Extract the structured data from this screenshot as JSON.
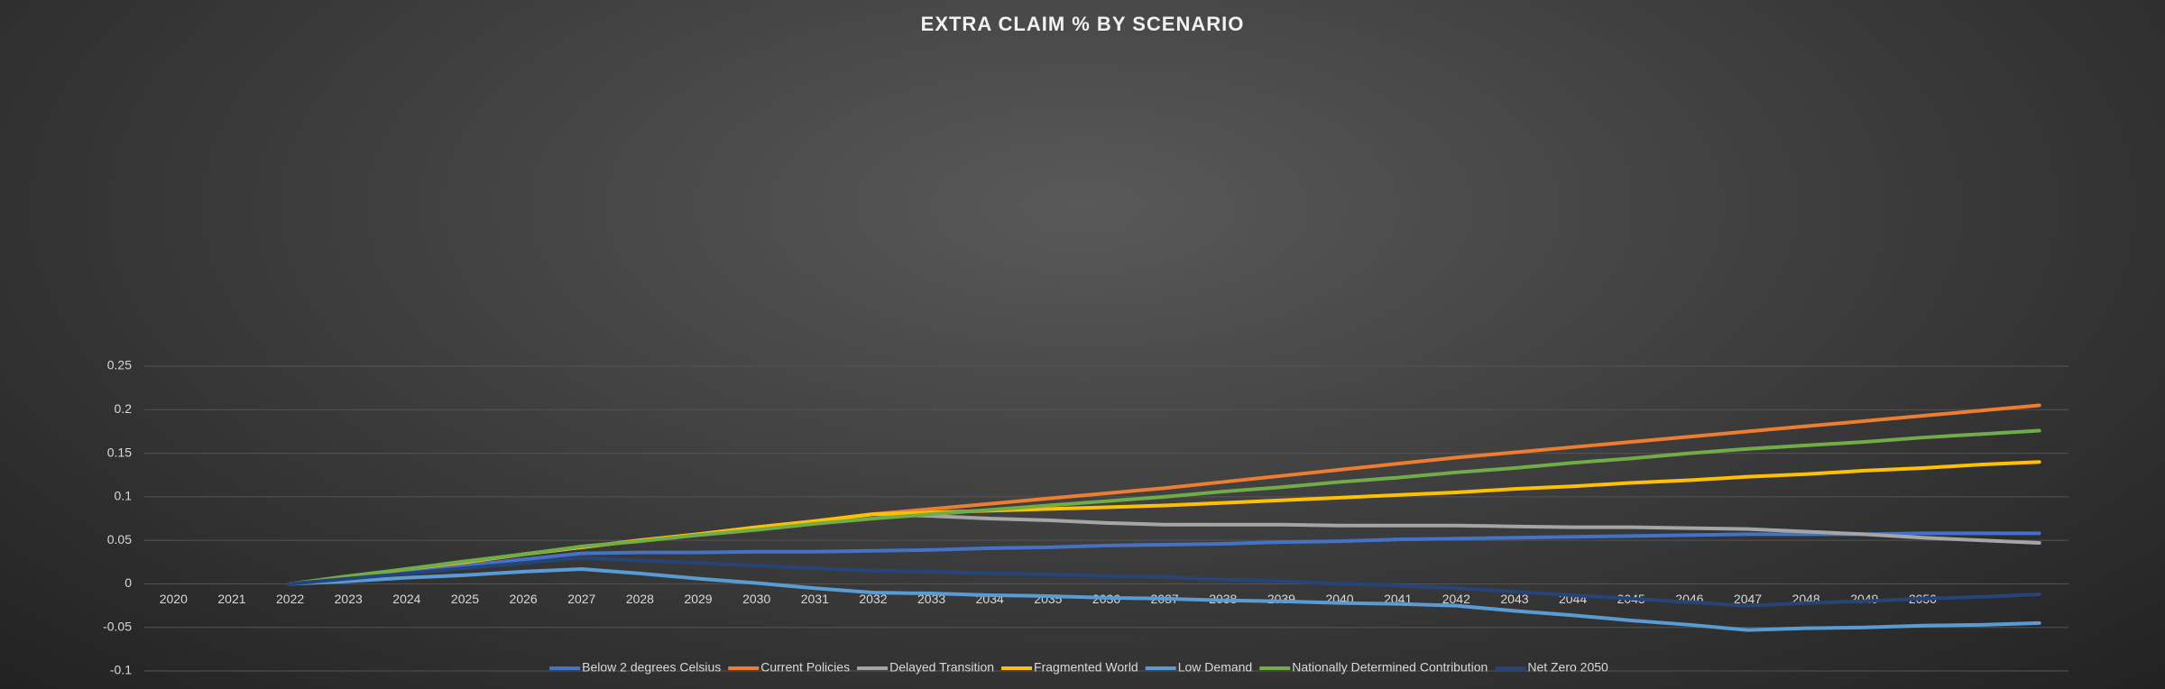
{
  "chart_data": {
    "type": "line",
    "title": "EXTRA CLAIM % BY SCENARIO",
    "categories": [
      "2020",
      "2021",
      "2022",
      "2023",
      "2024",
      "2025",
      "2026",
      "2027",
      "2028",
      "2029",
      "2030",
      "2031",
      "2032",
      "2033",
      "2034",
      "2035",
      "2036",
      "2037",
      "2038",
      "2039",
      "2040",
      "2041",
      "2042",
      "2043",
      "2044",
      "2045",
      "2046",
      "2047",
      "2048",
      "2049",
      "2050",
      null,
      null
    ],
    "ylim": [
      -0.1,
      0.25
    ],
    "yticks": [
      -0.1,
      -0.05,
      0,
      0.05,
      0.1,
      0.15,
      0.2,
      0.25
    ],
    "grid": true,
    "legend": "bottom",
    "series": [
      {
        "name": "Below 2 degrees Celsius",
        "color": "#4472c4",
        "values": [
          null,
          null,
          0,
          0.007,
          0.014,
          0.021,
          0.028,
          0.035,
          0.036,
          0.036,
          0.037,
          0.037,
          0.038,
          0.039,
          0.041,
          0.042,
          0.044,
          0.045,
          0.046,
          0.048,
          0.049,
          0.051,
          0.052,
          0.053,
          0.054,
          0.055,
          0.056,
          0.057,
          0.057,
          0.057,
          0.058,
          0.058,
          0.058
        ]
      },
      {
        "name": "Current Policies",
        "color": "#ed7d31",
        "values": [
          null,
          null,
          0,
          0.008,
          0.017,
          0.025,
          0.034,
          0.042,
          0.05,
          0.057,
          0.065,
          0.072,
          0.08,
          0.086,
          0.092,
          0.098,
          0.104,
          0.11,
          0.117,
          0.124,
          0.131,
          0.138,
          0.145,
          0.151,
          0.157,
          0.163,
          0.169,
          0.175,
          0.181,
          0.187,
          0.193,
          0.199,
          0.205
        ]
      },
      {
        "name": "Delayed Transition",
        "color": "#a5a5a5",
        "values": [
          null,
          null,
          0,
          0.008,
          0.017,
          0.025,
          0.034,
          0.042,
          0.05,
          0.057,
          0.065,
          0.072,
          0.08,
          0.078,
          0.075,
          0.073,
          0.07,
          0.068,
          0.068,
          0.068,
          0.067,
          0.067,
          0.067,
          0.066,
          0.065,
          0.065,
          0.064,
          0.063,
          0.06,
          0.057,
          0.053,
          0.05,
          0.047
        ]
      },
      {
        "name": "Fragmented World",
        "color": "#ffc000",
        "values": [
          null,
          null,
          0,
          0.008,
          0.017,
          0.025,
          0.034,
          0.042,
          0.05,
          0.057,
          0.065,
          0.072,
          0.08,
          0.082,
          0.084,
          0.086,
          0.088,
          0.09,
          0.093,
          0.096,
          0.099,
          0.102,
          0.105,
          0.109,
          0.112,
          0.116,
          0.119,
          0.123,
          0.126,
          0.13,
          0.133,
          0.137,
          0.14
        ]
      },
      {
        "name": "Low Demand",
        "color": "#5b9bd5",
        "values": [
          null,
          null,
          0,
          0.003,
          0.007,
          0.01,
          0.014,
          0.017,
          0.012,
          0.006,
          0.001,
          -0.005,
          -0.01,
          -0.011,
          -0.013,
          -0.014,
          -0.016,
          -0.017,
          -0.019,
          -0.02,
          -0.022,
          -0.023,
          -0.025,
          -0.031,
          -0.036,
          -0.042,
          -0.047,
          -0.053,
          -0.051,
          -0.05,
          -0.048,
          -0.047,
          -0.045
        ]
      },
      {
        "name": "Nationally Determined Contribution",
        "color": "#70ad47",
        "values": [
          null,
          null,
          0,
          0.009,
          0.017,
          0.026,
          0.034,
          0.043,
          0.049,
          0.056,
          0.062,
          0.069,
          0.075,
          0.08,
          0.085,
          0.09,
          0.095,
          0.1,
          0.106,
          0.111,
          0.117,
          0.122,
          0.128,
          0.133,
          0.139,
          0.144,
          0.15,
          0.155,
          0.159,
          0.163,
          0.168,
          0.172,
          0.176
        ]
      },
      {
        "name": "Net Zero 2050",
        "color": "#264478",
        "values": [
          null,
          null,
          0,
          0.006,
          0.012,
          0.018,
          0.024,
          0.03,
          0.027,
          0.024,
          0.021,
          0.018,
          0.015,
          0.014,
          0.012,
          0.011,
          0.009,
          0.008,
          0.005,
          0.003,
          0,
          -0.002,
          -0.005,
          -0.009,
          -0.013,
          -0.017,
          -0.021,
          -0.025,
          -0.022,
          -0.02,
          -0.017,
          -0.015,
          -0.012
        ]
      }
    ]
  }
}
